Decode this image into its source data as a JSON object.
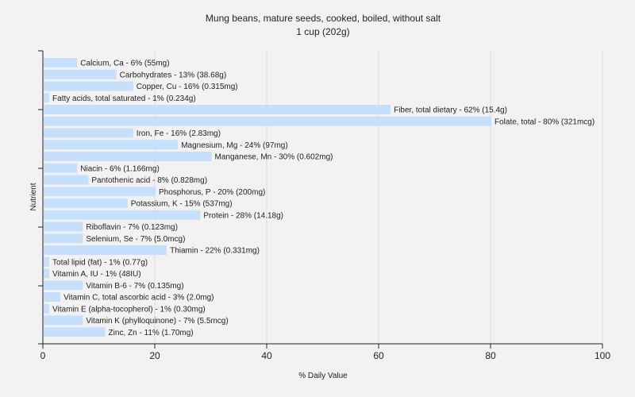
{
  "chart_data": {
    "type": "bar",
    "orientation": "horizontal",
    "title": "Mung beans, mature seeds, cooked, boiled, without salt",
    "subtitle": "1 cup (202g)",
    "xlabel": "% Daily Value",
    "ylabel": "Nutrient",
    "xlim": [
      0,
      100
    ],
    "xticks": [
      "0",
      "20",
      "40",
      "60",
      "80",
      "100"
    ],
    "grid": true,
    "bar_color": "#c6dffa",
    "categories": [
      "Calcium, Ca",
      "Carbohydrates",
      "Copper, Cu",
      "Fatty acids, total saturated",
      "Fiber, total dietary",
      "Folate, total",
      "Iron, Fe",
      "Magnesium, Mg",
      "Manganese, Mn",
      "Niacin",
      "Pantothenic acid",
      "Phosphorus, P",
      "Potassium, K",
      "Protein",
      "Riboflavin",
      "Selenium, Se",
      "Thiamin",
      "Total lipid (fat)",
      "Vitamin A, IU",
      "Vitamin B-6",
      "Vitamin C, total ascorbic acid",
      "Vitamin E (alpha-tocopherol)",
      "Vitamin K (phylloquinone)",
      "Zinc, Zn"
    ],
    "values": [
      6,
      13,
      16,
      1,
      62,
      80,
      16,
      24,
      30,
      6,
      8,
      20,
      15,
      28,
      7,
      7,
      22,
      1,
      1,
      7,
      3,
      1,
      7,
      11
    ],
    "labels": [
      "Calcium, Ca - 6% (55mg)",
      "Carbohydrates - 13% (38.68g)",
      "Copper, Cu - 16% (0.315mg)",
      "Fatty acids, total saturated - 1% (0.234g)",
      "Fiber, total dietary - 62% (15.4g)",
      "Folate, total - 80% (321mcg)",
      "Iron, Fe - 16% (2.83mg)",
      "Magnesium, Mg - 24% (97mg)",
      "Manganese, Mn - 30% (0.602mg)",
      "Niacin - 6% (1.166mg)",
      "Pantothenic acid - 8% (0.828mg)",
      "Phosphorus, P - 20% (200mg)",
      "Potassium, K - 15% (537mg)",
      "Protein - 28% (14.18g)",
      "Riboflavin - 7% (0.123mg)",
      "Selenium, Se - 7% (5.0mcg)",
      "Thiamin - 22% (0.331mg)",
      "Total lipid (fat) - 1% (0.77g)",
      "Vitamin A, IU - 1% (48IU)",
      "Vitamin B-6 - 7% (0.135mg)",
      "Vitamin C, total ascorbic acid - 3% (2.0mg)",
      "Vitamin E (alpha-tocopherol) - 1% (0.30mg)",
      "Vitamin K (phylloquinone) - 7% (5.5mcg)",
      "Zinc, Zn - 11% (1.70mg)"
    ]
  }
}
